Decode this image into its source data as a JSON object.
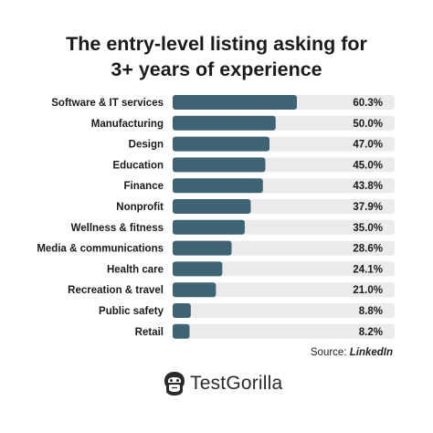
{
  "colors": {
    "bar": "#3e6474",
    "track": "#ebebeb",
    "text": "#1a1a1a"
  },
  "chart_data": {
    "type": "bar",
    "orientation": "horizontal",
    "title": "The entry-level listing asking for 3+ years of experience",
    "title_lines": [
      "The entry-level listing asking for",
      "3+ years of experience"
    ],
    "categories": [
      "Software & IT services",
      "Manufacturing",
      "Design",
      "Education",
      "Finance",
      "Nonprofit",
      "Wellness & fitness",
      "Media & communications",
      "Health care",
      "Recreation & travel",
      "Public safety",
      "Retail"
    ],
    "values": [
      60.3,
      50.0,
      47.0,
      45.0,
      43.8,
      37.9,
      35.0,
      28.6,
      24.1,
      21.0,
      8.8,
      8.2
    ],
    "value_labels": [
      "60.3%",
      "50.0%",
      "47.0%",
      "45.0%",
      "43.8%",
      "37.9%",
      "35.0%",
      "28.6%",
      "24.1%",
      "21.0%",
      "8.8%",
      "8.2%"
    ],
    "xlim": [
      0,
      100
    ],
    "grid": false,
    "legend": "none"
  },
  "source": {
    "prefix": "Source: ",
    "name": "LinkedIn"
  },
  "brand": {
    "name": "TestGorilla",
    "icon": "gorilla-logo-icon"
  }
}
